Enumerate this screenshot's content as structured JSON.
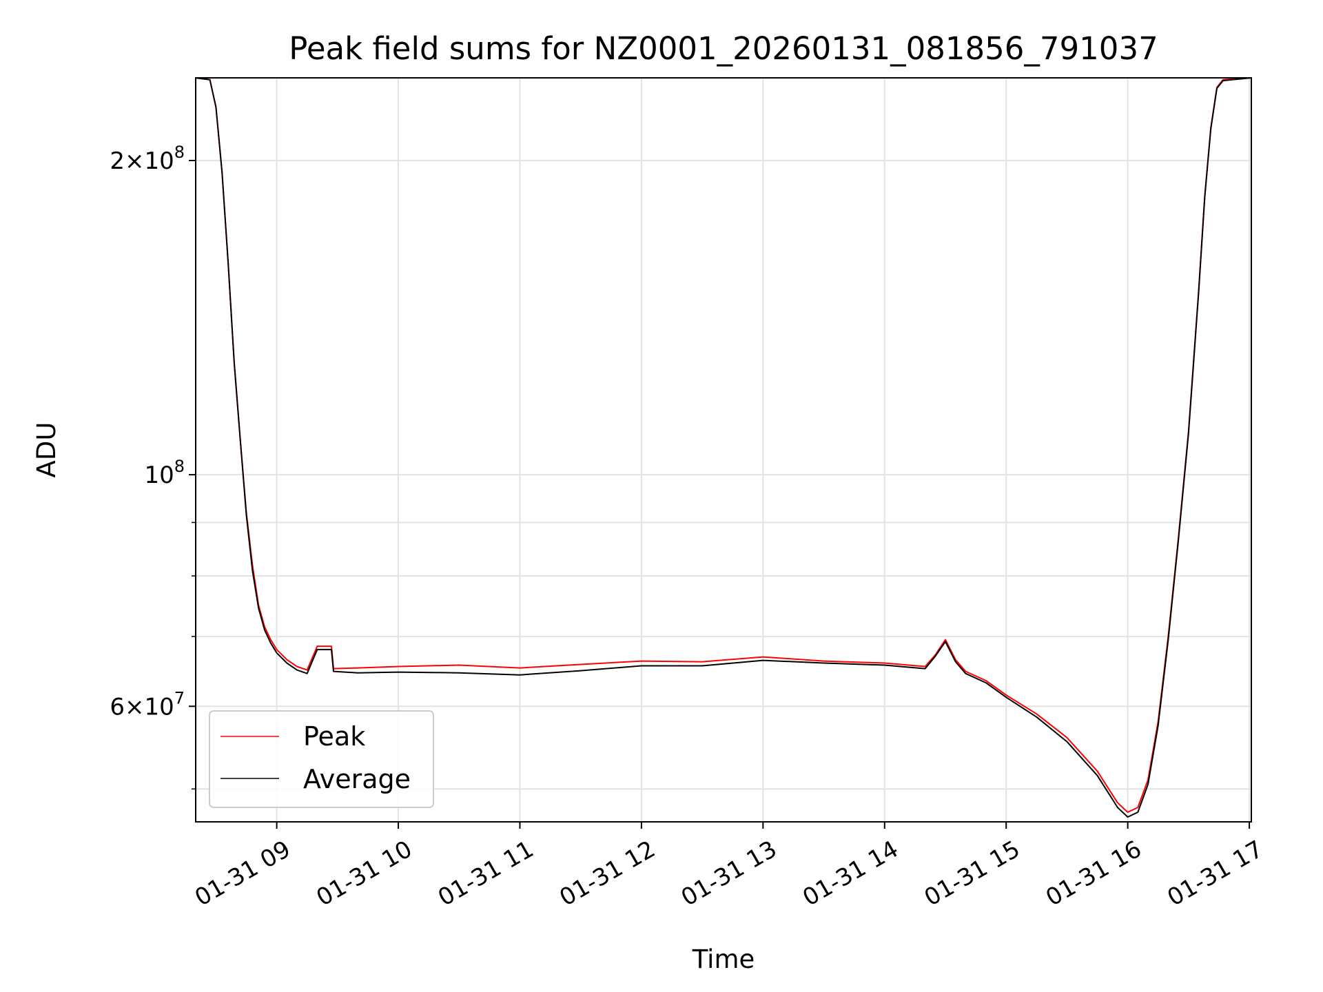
{
  "chart_data": {
    "type": "line",
    "title": "Peak field sums for NZ0001_20260131_081856_791037",
    "xlabel": "Time",
    "ylabel": "ADU",
    "yscale": "log",
    "xlim": [
      "2026-01-31 08:20",
      "2026-01-31 17:01"
    ],
    "ylim": [
      46500000,
      240000000
    ],
    "grid": true,
    "legend": {
      "position": "lower left",
      "entries": [
        "Peak",
        "Average"
      ]
    },
    "x_ticks": [
      "01-31 09",
      "01-31 10",
      "01-31 11",
      "01-31 12",
      "01-31 13",
      "01-31 14",
      "01-31 15",
      "01-31 16",
      "01-31 17"
    ],
    "y_ticks": [
      {
        "value": 200000000,
        "mantissa": "2",
        "exponent": "8"
      },
      {
        "value": 100000000,
        "mantissa": "",
        "exponent": "8"
      },
      {
        "value": 60000000,
        "mantissa": "6",
        "exponent": "7"
      }
    ],
    "series": [
      {
        "name": "Peak",
        "color": "#ff0000",
        "points": [
          [
            "08:20",
            240000000
          ],
          [
            "08:27",
            239000000
          ],
          [
            "08:30",
            225000000
          ],
          [
            "08:33",
            195000000
          ],
          [
            "08:36",
            160000000
          ],
          [
            "08:39",
            128000000
          ],
          [
            "08:42",
            108000000
          ],
          [
            "08:45",
            92000000
          ],
          [
            "08:48",
            82000000
          ],
          [
            "08:51",
            75000000
          ],
          [
            "08:54",
            71500000
          ],
          [
            "08:57",
            69500000
          ],
          [
            "09:00",
            68000000
          ],
          [
            "09:05",
            66500000
          ],
          [
            "09:10",
            65500000
          ],
          [
            "09:15",
            65000000
          ],
          [
            "09:20",
            68500000
          ],
          [
            "09:27",
            68500000
          ],
          [
            "09:28",
            65200000
          ],
          [
            "09:40",
            65300000
          ],
          [
            "10:00",
            65500000
          ],
          [
            "10:30",
            65700000
          ],
          [
            "11:00",
            65300000
          ],
          [
            "11:30",
            65800000
          ],
          [
            "12:00",
            66300000
          ],
          [
            "12:30",
            66200000
          ],
          [
            "13:00",
            66900000
          ],
          [
            "13:30",
            66300000
          ],
          [
            "14:00",
            66000000
          ],
          [
            "14:20",
            65500000
          ],
          [
            "14:25",
            67200000
          ],
          [
            "14:30",
            69500000
          ],
          [
            "14:35",
            66500000
          ],
          [
            "14:40",
            64800000
          ],
          [
            "14:50",
            63500000
          ],
          [
            "15:00",
            61500000
          ],
          [
            "15:15",
            59000000
          ],
          [
            "15:30",
            56000000
          ],
          [
            "15:45",
            52000000
          ],
          [
            "15:55",
            48500000
          ],
          [
            "16:00",
            47500000
          ],
          [
            "16:05",
            48000000
          ],
          [
            "16:10",
            51000000
          ],
          [
            "16:15",
            58000000
          ],
          [
            "16:20",
            70000000
          ],
          [
            "16:25",
            87000000
          ],
          [
            "16:30",
            110000000
          ],
          [
            "16:35",
            150000000
          ],
          [
            "16:38",
            185000000
          ],
          [
            "16:41",
            215000000
          ],
          [
            "16:44",
            235000000
          ],
          [
            "16:47",
            239000000
          ],
          [
            "17:01",
            240000000
          ]
        ]
      },
      {
        "name": "Average",
        "color": "#000000",
        "points": [
          [
            "08:20",
            240000000
          ],
          [
            "08:27",
            239000000
          ],
          [
            "08:30",
            225000000
          ],
          [
            "08:33",
            195000000
          ],
          [
            "08:36",
            160000000
          ],
          [
            "08:39",
            128000000
          ],
          [
            "08:42",
            108000000
          ],
          [
            "08:45",
            91500000
          ],
          [
            "08:48",
            81000000
          ],
          [
            "08:51",
            74500000
          ],
          [
            "08:54",
            71000000
          ],
          [
            "08:57",
            69000000
          ],
          [
            "09:00",
            67500000
          ],
          [
            "09:05",
            66000000
          ],
          [
            "09:10",
            65000000
          ],
          [
            "09:15",
            64500000
          ],
          [
            "09:20",
            68000000
          ],
          [
            "09:27",
            68000000
          ],
          [
            "09:28",
            64800000
          ],
          [
            "09:40",
            64600000
          ],
          [
            "10:00",
            64700000
          ],
          [
            "10:30",
            64600000
          ],
          [
            "11:00",
            64300000
          ],
          [
            "11:30",
            64900000
          ],
          [
            "12:00",
            65600000
          ],
          [
            "12:30",
            65600000
          ],
          [
            "13:00",
            66400000
          ],
          [
            "13:30",
            66000000
          ],
          [
            "14:00",
            65700000
          ],
          [
            "14:20",
            65200000
          ],
          [
            "14:25",
            67000000
          ],
          [
            "14:30",
            69200000
          ],
          [
            "14:35",
            66200000
          ],
          [
            "14:40",
            64500000
          ],
          [
            "14:50",
            63200000
          ],
          [
            "15:00",
            61200000
          ],
          [
            "15:15",
            58600000
          ],
          [
            "15:30",
            55500000
          ],
          [
            "15:45",
            51500000
          ],
          [
            "15:55",
            48000000
          ],
          [
            "16:00",
            47000000
          ],
          [
            "16:05",
            47500000
          ],
          [
            "16:10",
            50500000
          ],
          [
            "16:15",
            57500000
          ],
          [
            "16:20",
            69500000
          ],
          [
            "16:25",
            86500000
          ],
          [
            "16:30",
            109500000
          ],
          [
            "16:35",
            149500000
          ],
          [
            "16:38",
            184500000
          ],
          [
            "16:41",
            214500000
          ],
          [
            "16:44",
            234500000
          ],
          [
            "16:47",
            238500000
          ],
          [
            "17:01",
            240000000
          ]
        ]
      }
    ]
  }
}
